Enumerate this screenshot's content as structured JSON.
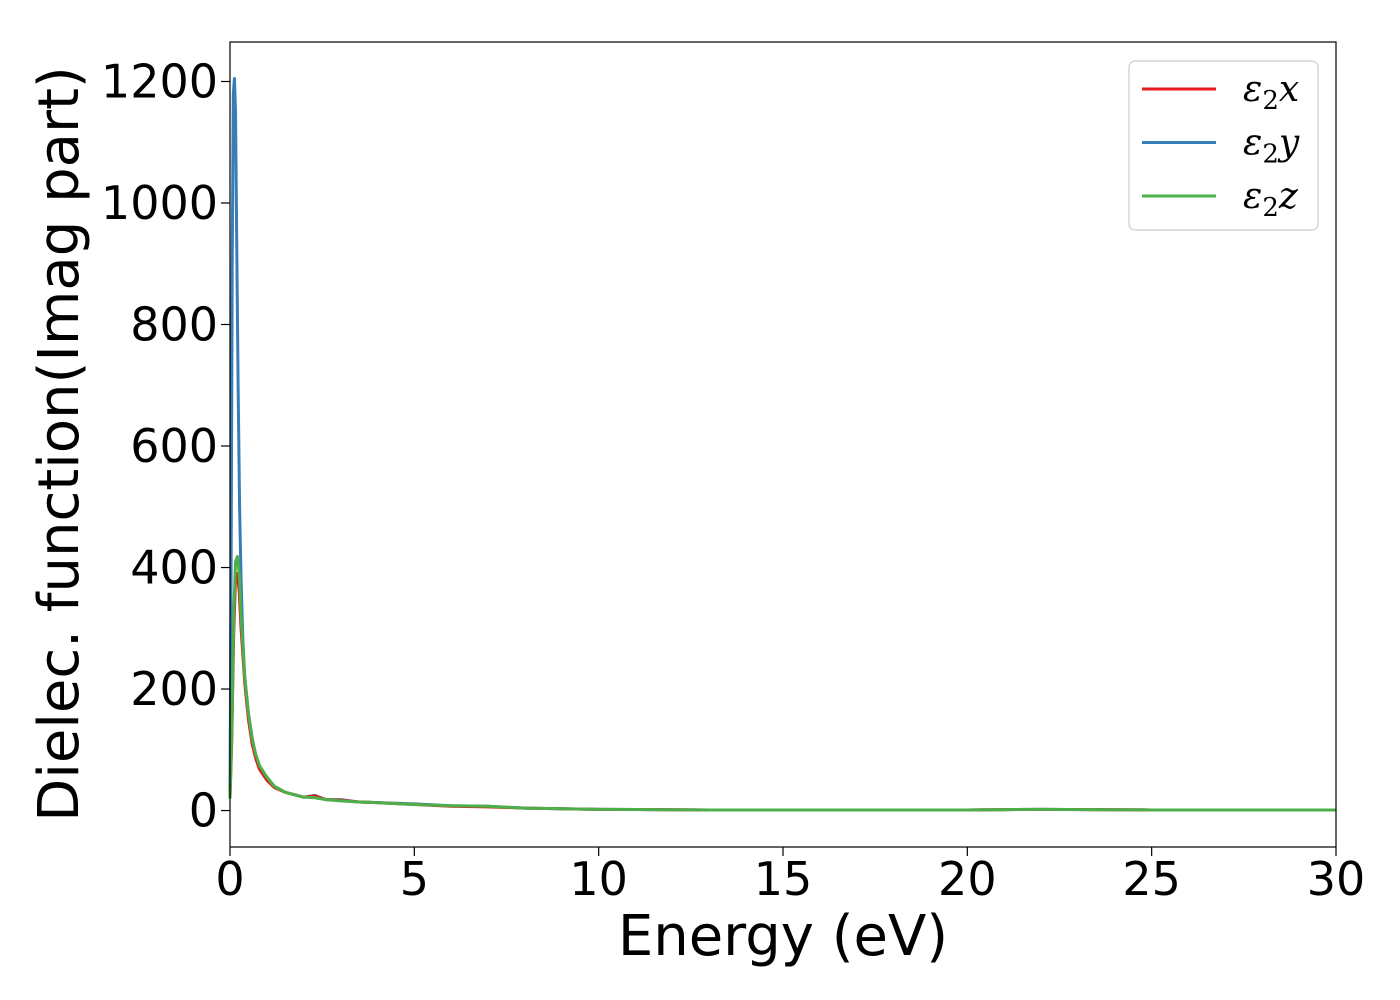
{
  "chart_data": {
    "type": "line",
    "title": "",
    "xlabel": "Energy (eV)",
    "ylabel": "Dielec. function(Imag part)",
    "xlim": [
      0,
      30
    ],
    "ylim": [
      -60,
      1265
    ],
    "xticks": [
      "0",
      "5",
      "10",
      "15",
      "20",
      "25",
      "30"
    ],
    "yticks": [
      "0",
      "200",
      "400",
      "600",
      "800",
      "1000",
      "1200"
    ],
    "grid": false,
    "legend_position": "top-right",
    "series": [
      {
        "name": "ε2x",
        "legend_symbol": "ε",
        "legend_sub": "2",
        "legend_var": "x",
        "color": "#e41a1c",
        "x": [
          0,
          0.05,
          0.1,
          0.15,
          0.2,
          0.25,
          0.3,
          0.4,
          0.5,
          0.6,
          0.7,
          0.8,
          1.0,
          1.2,
          1.5,
          2.0,
          2.3,
          2.6,
          3.0,
          3.5,
          4.0,
          5.0,
          6.0,
          7.0,
          8.0,
          10.0,
          13.0,
          16.0,
          20.0,
          22.0,
          25.0,
          30.0
        ],
        "y": [
          20,
          120,
          290,
          385,
          390,
          360,
          300,
          210,
          150,
          110,
          85,
          68,
          50,
          38,
          30,
          22,
          24,
          18,
          17,
          14,
          13,
          10,
          7,
          6,
          4,
          2,
          1,
          1,
          1,
          2,
          1,
          1
        ]
      },
      {
        "name": "ε2y",
        "legend_symbol": "ε",
        "legend_sub": "2",
        "legend_var": "y",
        "color": "#377eb8",
        "x": [
          0,
          0.03,
          0.06,
          0.09,
          0.12,
          0.15,
          0.18,
          0.22,
          0.26,
          0.3,
          0.35,
          0.4,
          0.5,
          0.6,
          0.7,
          0.8,
          1.0,
          1.2,
          1.5,
          2.0,
          2.3,
          2.6,
          3.0,
          3.5,
          4.0,
          5.0,
          6.0,
          7.0,
          8.0,
          10.0,
          13.0,
          16.0,
          20.0,
          22.0,
          25.0,
          30.0
        ],
        "y": [
          30,
          400,
          900,
          1180,
          1205,
          1150,
          950,
          700,
          500,
          380,
          280,
          220,
          160,
          120,
          90,
          72,
          55,
          40,
          30,
          22,
          25,
          18,
          18,
          14,
          13,
          11,
          8,
          7,
          4,
          2,
          1,
          1,
          1,
          2,
          1,
          1
        ]
      },
      {
        "name": "ε2z",
        "legend_symbol": "ε",
        "legend_sub": "2",
        "legend_var": "z",
        "color": "#4daf4a",
        "x": [
          0,
          0.05,
          0.1,
          0.15,
          0.2,
          0.25,
          0.3,
          0.4,
          0.5,
          0.6,
          0.7,
          0.8,
          1.0,
          1.2,
          1.5,
          2.0,
          2.3,
          2.6,
          3.0,
          3.5,
          4.0,
          5.0,
          6.0,
          7.0,
          8.0,
          10.0,
          13.0,
          16.0,
          20.0,
          22.0,
          25.0,
          30.0
        ],
        "y": [
          20,
          130,
          320,
          410,
          418,
          390,
          320,
          220,
          160,
          118,
          92,
          74,
          55,
          40,
          30,
          22,
          21,
          18,
          16,
          14,
          13,
          10,
          8,
          7,
          4,
          2,
          1,
          1,
          1,
          2,
          1,
          1
        ]
      }
    ]
  }
}
